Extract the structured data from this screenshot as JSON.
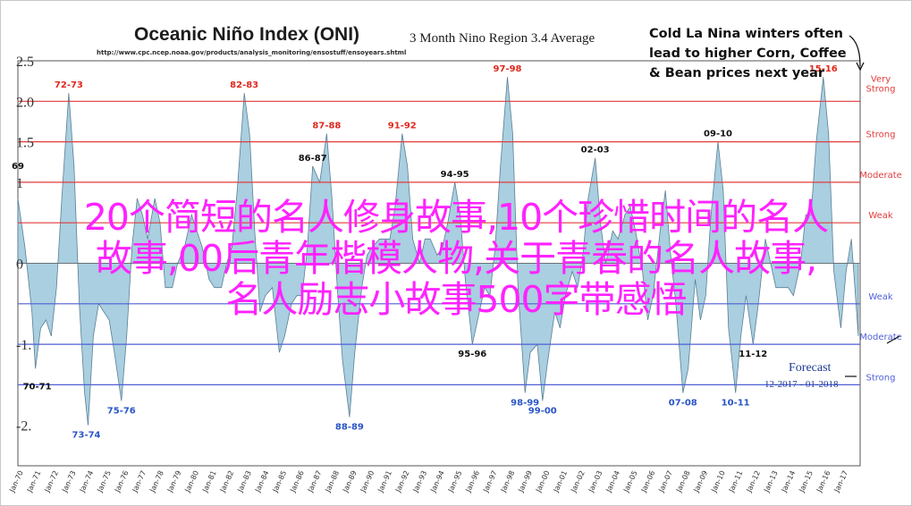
{
  "header": {
    "title": "Oceanic Niño Index (ONI)",
    "subtitle": "3 Month Nino Region 3.4 Average",
    "source_url": "http://www.cpc.ncep.noaa.gov/products/analysis_monitoring/ensostuff/ensoyears.shtml"
  },
  "callout": {
    "lines": [
      "Cold La Nina winters often",
      "lead to higher Corn, Coffee",
      "& Bean prices next year"
    ]
  },
  "overlay": {
    "lines": [
      "20个简短的名人修身故事,10个珍惜时间的名人",
      "故事,00后青年楷模人物,关于青春的名人故事,",
      "名人励志小故事500字带感悟"
    ]
  },
  "forecast": {
    "label": "Forecast",
    "range": "12-2017 - 01-2018"
  },
  "colors": {
    "area_fill": "#a9cfe0",
    "area_stroke": "#5b7f95",
    "el_nino_lines": "#e03c3c",
    "la_nina_lines": "#4f5fd6",
    "peak_labels": "#e0281e",
    "overlay_text": "#ff22ff",
    "forecast_text": "#1f3a93"
  },
  "chart_data": {
    "type": "area",
    "title": "Oceanic Niño Index (ONI)",
    "subtitle": "3 Month Nino Region 3.4 Average",
    "ylim": [
      -2.5,
      2.5
    ],
    "xlim": [
      1970.0,
      2018.0
    ],
    "grid": false,
    "y_tick_labels": [
      {
        "value": 2.5,
        "label": "2.5"
      },
      {
        "value": 2.0,
        "label": "2.0"
      },
      {
        "value": 1.5,
        "label": "1.5"
      },
      {
        "value": 1.0,
        "label": "1"
      },
      {
        "value": 0.0,
        "label": "0"
      },
      {
        "value": -1.0,
        "label": "-1."
      },
      {
        "value": -2.0,
        "label": "-2."
      }
    ],
    "x_tick_labels": [
      "Jan-70",
      "Jan-71",
      "Jan-72",
      "Jan-73",
      "Jan-74",
      "Jan-75",
      "Jan-76",
      "Jan-77",
      "Jan-78",
      "Jan-79",
      "Jan-80",
      "Jan-81",
      "Jan-82",
      "Jan-83",
      "Jan-84",
      "Jan-85",
      "Jan-86",
      "Jan-87",
      "Jan-88",
      "Jan-89",
      "Jan-90",
      "Jan-91",
      "Jan-92",
      "Jan-93",
      "Jan-94",
      "Jan-95",
      "Jan-96",
      "Jan-97",
      "Jan-98",
      "Jan-99",
      "Jan-00",
      "Jan-01",
      "Jan-02",
      "Jan-03",
      "Jan-04",
      "Jan-05",
      "Jan-06",
      "Jan-07",
      "Jan-08",
      "Jan-09",
      "Jan-10",
      "Jan-11",
      "Jan-12",
      "Jan-13",
      "Jan-14",
      "Jan-15",
      "Jan-16",
      "Jan-17"
    ],
    "thresholds": [
      {
        "value": 2.0,
        "label": "Very\nStrong",
        "group": "el_nino"
      },
      {
        "value": 1.5,
        "label": "Strong",
        "group": "el_nino"
      },
      {
        "value": 1.0,
        "label": "Moderate",
        "group": "el_nino"
      },
      {
        "value": 0.5,
        "label": "Weak",
        "group": "el_nino"
      },
      {
        "value": -0.5,
        "label": "Weak",
        "group": "la_nina"
      },
      {
        "value": -1.0,
        "label": "Moderate",
        "group": "la_nina"
      },
      {
        "value": -1.5,
        "label": "Strong",
        "group": "la_nina"
      }
    ],
    "peak_labels": [
      {
        "x": 1972.9,
        "y": 2.1,
        "label": "72-73",
        "color": "red"
      },
      {
        "x": 1982.9,
        "y": 2.1,
        "label": "82-83",
        "color": "red"
      },
      {
        "x": 1987.6,
        "y": 1.6,
        "label": "87-88",
        "color": "red"
      },
      {
        "x": 1991.9,
        "y": 1.6,
        "label": "91-92",
        "color": "red"
      },
      {
        "x": 1997.9,
        "y": 2.3,
        "label": "97-98",
        "color": "red"
      },
      {
        "x": 2015.9,
        "y": 2.3,
        "label": "15-16",
        "color": "red"
      },
      {
        "x": 1986.8,
        "y": 1.2,
        "label": "86-87",
        "color": "black"
      },
      {
        "x": 1994.9,
        "y": 1.0,
        "label": "94-95",
        "color": "black"
      },
      {
        "x": 2002.9,
        "y": 1.3,
        "label": "02-03",
        "color": "black"
      },
      {
        "x": 2009.9,
        "y": 1.5,
        "label": "09-10",
        "color": "black"
      },
      {
        "x": 1970.0,
        "y": 1.1,
        "label": "69",
        "color": "black"
      },
      {
        "x": 1971.1,
        "y": -1.4,
        "label": "70-71",
        "color": "black"
      },
      {
        "x": 1973.9,
        "y": -2.0,
        "label": "73-74",
        "color": "blue"
      },
      {
        "x": 1975.9,
        "y": -1.7,
        "label": "75-76",
        "color": "blue"
      },
      {
        "x": 1988.9,
        "y": -1.9,
        "label": "88-89",
        "color": "blue"
      },
      {
        "x": 1995.9,
        "y": -1.0,
        "label": "95-96",
        "color": "black"
      },
      {
        "x": 1998.9,
        "y": -1.6,
        "label": "98-99",
        "color": "blue"
      },
      {
        "x": 1999.9,
        "y": -1.7,
        "label": "99-00",
        "color": "blue"
      },
      {
        "x": 2007.9,
        "y": -1.6,
        "label": "07-08",
        "color": "blue"
      },
      {
        "x": 2010.9,
        "y": -1.6,
        "label": "10-11",
        "color": "blue"
      },
      {
        "x": 2011.9,
        "y": -1.0,
        "label": "11-12",
        "color": "black"
      }
    ],
    "series": [
      {
        "points": [
          [
            1970.0,
            0.8
          ],
          [
            1970.4,
            0.2
          ],
          [
            1970.8,
            -0.6
          ],
          [
            1971.0,
            -1.3
          ],
          [
            1971.3,
            -0.8
          ],
          [
            1971.6,
            -0.7
          ],
          [
            1971.9,
            -0.9
          ],
          [
            1972.2,
            -0.3
          ],
          [
            1972.5,
            0.8
          ],
          [
            1972.9,
            2.1
          ],
          [
            1973.2,
            1.2
          ],
          [
            1973.5,
            -0.5
          ],
          [
            1973.8,
            -1.6
          ],
          [
            1974.0,
            -2.0
          ],
          [
            1974.3,
            -0.9
          ],
          [
            1974.6,
            -0.5
          ],
          [
            1974.9,
            -0.6
          ],
          [
            1975.2,
            -0.7
          ],
          [
            1975.5,
            -1.1
          ],
          [
            1975.9,
            -1.7
          ],
          [
            1976.2,
            -0.9
          ],
          [
            1976.5,
            0.2
          ],
          [
            1976.8,
            0.8
          ],
          [
            1977.1,
            0.6
          ],
          [
            1977.4,
            0.3
          ],
          [
            1977.8,
            0.8
          ],
          [
            1978.1,
            0.5
          ],
          [
            1978.4,
            -0.3
          ],
          [
            1978.8,
            -0.3
          ],
          [
            1979.1,
            0.0
          ],
          [
            1979.5,
            0.2
          ],
          [
            1979.9,
            0.6
          ],
          [
            1980.2,
            0.4
          ],
          [
            1980.5,
            0.2
          ],
          [
            1980.9,
            -0.2
          ],
          [
            1981.2,
            -0.3
          ],
          [
            1981.6,
            -0.3
          ],
          [
            1981.9,
            0.0
          ],
          [
            1982.2,
            0.2
          ],
          [
            1982.5,
            0.9
          ],
          [
            1982.9,
            2.1
          ],
          [
            1983.2,
            1.6
          ],
          [
            1983.5,
            0.4
          ],
          [
            1983.8,
            -0.6
          ],
          [
            1984.1,
            -0.4
          ],
          [
            1984.5,
            -0.3
          ],
          [
            1984.9,
            -1.1
          ],
          [
            1985.2,
            -0.9
          ],
          [
            1985.6,
            -0.5
          ],
          [
            1985.9,
            -0.4
          ],
          [
            1986.2,
            -0.4
          ],
          [
            1986.5,
            0.2
          ],
          [
            1986.8,
            1.2
          ],
          [
            1987.2,
            1.0
          ],
          [
            1987.6,
            1.6
          ],
          [
            1987.9,
            0.8
          ],
          [
            1988.2,
            -0.3
          ],
          [
            1988.5,
            -1.2
          ],
          [
            1988.9,
            -1.9
          ],
          [
            1989.2,
            -1.1
          ],
          [
            1989.6,
            -0.3
          ],
          [
            1989.9,
            0.1
          ],
          [
            1990.2,
            0.2
          ],
          [
            1990.6,
            0.3
          ],
          [
            1990.9,
            0.3
          ],
          [
            1991.2,
            0.3
          ],
          [
            1991.5,
            0.7
          ],
          [
            1991.9,
            1.6
          ],
          [
            1992.2,
            1.2
          ],
          [
            1992.5,
            0.3
          ],
          [
            1992.9,
            0.0
          ],
          [
            1993.2,
            0.3
          ],
          [
            1993.5,
            0.3
          ],
          [
            1993.9,
            0.1
          ],
          [
            1994.2,
            0.2
          ],
          [
            1994.5,
            0.5
          ],
          [
            1994.9,
            1.0
          ],
          [
            1995.2,
            0.6
          ],
          [
            1995.5,
            -0.2
          ],
          [
            1995.9,
            -1.0
          ],
          [
            1996.2,
            -0.7
          ],
          [
            1996.6,
            -0.3
          ],
          [
            1996.9,
            -0.4
          ],
          [
            1997.2,
            0.2
          ],
          [
            1997.5,
            1.2
          ],
          [
            1997.9,
            2.3
          ],
          [
            1998.2,
            1.6
          ],
          [
            1998.5,
            -0.3
          ],
          [
            1998.9,
            -1.6
          ],
          [
            1999.2,
            -1.1
          ],
          [
            1999.6,
            -1.0
          ],
          [
            1999.9,
            -1.7
          ],
          [
            2000.2,
            -1.2
          ],
          [
            2000.6,
            -0.6
          ],
          [
            2000.9,
            -0.8
          ],
          [
            2001.2,
            -0.4
          ],
          [
            2001.6,
            -0.1
          ],
          [
            2001.9,
            -0.3
          ],
          [
            2002.2,
            0.1
          ],
          [
            2002.5,
            0.8
          ],
          [
            2002.9,
            1.3
          ],
          [
            2003.2,
            0.5
          ],
          [
            2003.5,
            0.0
          ],
          [
            2003.9,
            0.4
          ],
          [
            2004.2,
            0.3
          ],
          [
            2004.6,
            0.6
          ],
          [
            2004.9,
            0.7
          ],
          [
            2005.2,
            0.4
          ],
          [
            2005.6,
            -0.1
          ],
          [
            2005.9,
            -0.7
          ],
          [
            2006.2,
            -0.4
          ],
          [
            2006.6,
            0.4
          ],
          [
            2006.9,
            0.9
          ],
          [
            2007.2,
            0.1
          ],
          [
            2007.5,
            -0.5
          ],
          [
            2007.9,
            -1.6
          ],
          [
            2008.2,
            -1.3
          ],
          [
            2008.6,
            -0.2
          ],
          [
            2008.9,
            -0.7
          ],
          [
            2009.2,
            -0.4
          ],
          [
            2009.5,
            0.6
          ],
          [
            2009.9,
            1.5
          ],
          [
            2010.2,
            0.9
          ],
          [
            2010.5,
            -0.8
          ],
          [
            2010.9,
            -1.6
          ],
          [
            2011.2,
            -0.9
          ],
          [
            2011.5,
            -0.4
          ],
          [
            2011.9,
            -1.0
          ],
          [
            2012.2,
            -0.5
          ],
          [
            2012.6,
            0.3
          ],
          [
            2012.9,
            0.0
          ],
          [
            2013.2,
            -0.3
          ],
          [
            2013.6,
            -0.3
          ],
          [
            2013.9,
            -0.3
          ],
          [
            2014.2,
            -0.4
          ],
          [
            2014.6,
            0.0
          ],
          [
            2014.9,
            0.6
          ],
          [
            2015.2,
            0.6
          ],
          [
            2015.5,
            1.5
          ],
          [
            2015.9,
            2.3
          ],
          [
            2016.2,
            1.6
          ],
          [
            2016.5,
            -0.1
          ],
          [
            2016.9,
            -0.8
          ],
          [
            2017.2,
            -0.1
          ],
          [
            2017.5,
            0.3
          ],
          [
            2017.9,
            -0.9
          ]
        ]
      }
    ],
    "forecast": {
      "range": "12-2017 - 01-2018"
    }
  }
}
